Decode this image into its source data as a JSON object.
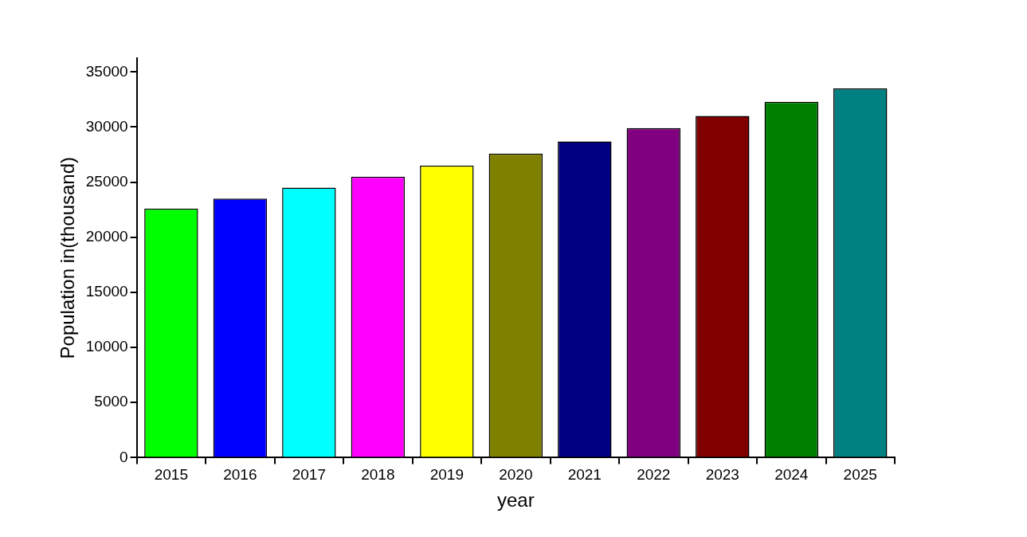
{
  "chart_data": {
    "type": "bar",
    "xlabel": "year",
    "ylabel": "Population in(thousand)",
    "categories": [
      "2015",
      "2016",
      "2017",
      "2018",
      "2019",
      "2020",
      "2021",
      "2022",
      "2023",
      "2024",
      "2025"
    ],
    "values": [
      22600,
      23500,
      24500,
      25500,
      26500,
      27600,
      28700,
      29900,
      31000,
      32300,
      33500
    ],
    "colors": [
      "#00ff00",
      "#0000ff",
      "#00ffff",
      "#ff00ff",
      "#ffff00",
      "#808000",
      "#000080",
      "#800080",
      "#800000",
      "#008000",
      "#008080"
    ],
    "ylim": [
      0,
      36250
    ],
    "yticks": [
      0,
      5000,
      10000,
      15000,
      20000,
      25000,
      30000,
      35000
    ],
    "grid": false,
    "legend": false
  }
}
